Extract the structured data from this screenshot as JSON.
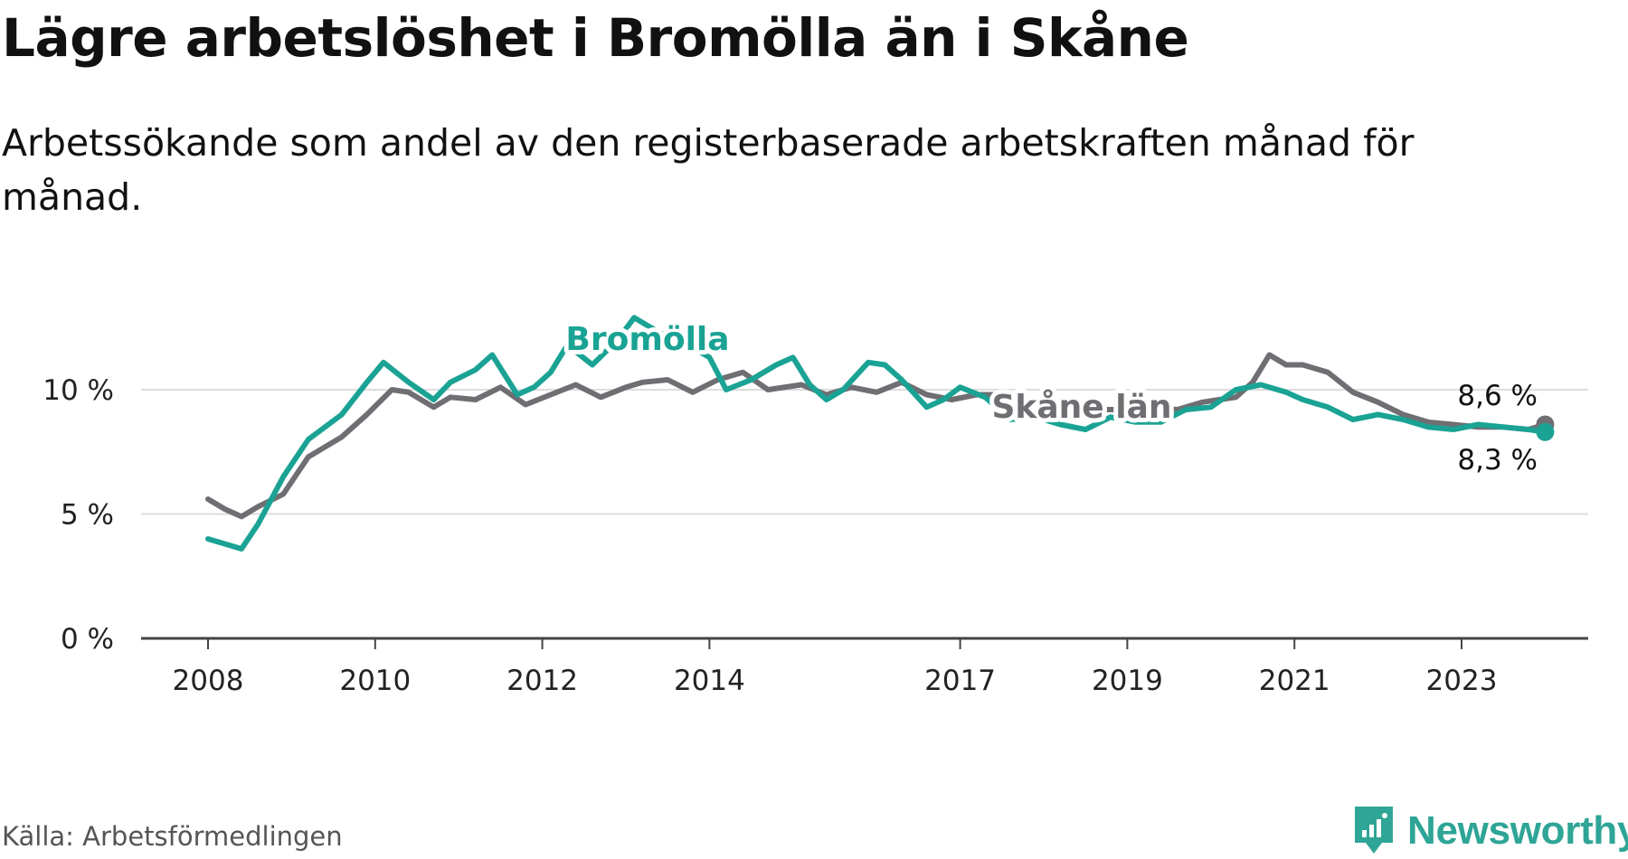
{
  "title": "Lägre arbetslöshet i Bromölla än i Skåne",
  "subtitle": "Arbetssökande som andel av den registerbaserade arbetskraften månad för månad.",
  "source": "Källa: Arbetsförmedlingen",
  "brand": "Newsworthy",
  "colors": {
    "bromolla": "#1aa394",
    "skane": "#6f6e72",
    "grid": "#dddddd",
    "axis": "#444444"
  },
  "chart_data": {
    "type": "line",
    "title": "Lägre arbetslöshet i Bromölla än i Skåne",
    "xlabel": "",
    "ylabel": "",
    "xlim": [
      2007.6,
      2024.6
    ],
    "ylim": [
      0,
      13
    ],
    "y_ticks": [
      0,
      5,
      10
    ],
    "y_tick_labels": [
      "0 %",
      "5 %",
      "10 %"
    ],
    "x_ticks": [
      2008,
      2010,
      2012,
      2014,
      2017,
      2019,
      2021,
      2023
    ],
    "x_tick_labels": [
      "2008",
      "2010",
      "2012",
      "2014",
      "2017",
      "2019",
      "2021",
      "2023"
    ],
    "series": [
      {
        "name": "Skåne län",
        "label": "Skåne län",
        "end_label": "8,6 %",
        "x": [
          2008.0,
          2008.2,
          2008.4,
          2008.6,
          2008.9,
          2009.2,
          2009.6,
          2009.9,
          2010.2,
          2010.4,
          2010.7,
          2010.9,
          2011.2,
          2011.5,
          2011.8,
          2012.1,
          2012.4,
          2012.7,
          2013.0,
          2013.2,
          2013.5,
          2013.8,
          2014.1,
          2014.4,
          2014.7,
          2015.1,
          2015.4,
          2015.7,
          2016.0,
          2016.3,
          2016.6,
          2016.9,
          2017.2,
          2017.5,
          2017.8,
          2018.1,
          2018.4,
          2018.7,
          2019.0,
          2019.3,
          2019.6,
          2019.9,
          2020.1,
          2020.3,
          2020.5,
          2020.7,
          2020.9,
          2021.1,
          2021.4,
          2021.7,
          2022.0,
          2022.3,
          2022.6,
          2022.9,
          2023.2,
          2023.5,
          2023.8,
          2024.0
        ],
        "values": [
          5.6,
          5.2,
          4.9,
          5.3,
          5.8,
          7.3,
          8.1,
          9.0,
          10.0,
          9.9,
          9.3,
          9.7,
          9.6,
          10.1,
          9.4,
          9.8,
          10.2,
          9.7,
          10.1,
          10.3,
          10.4,
          9.9,
          10.4,
          10.7,
          10.0,
          10.2,
          9.8,
          10.1,
          9.9,
          10.3,
          9.8,
          9.6,
          9.8,
          9.8,
          9.6,
          9.4,
          9.2,
          9.2,
          9.2,
          9.3,
          9.2,
          9.5,
          9.6,
          9.7,
          10.3,
          11.4,
          11.0,
          11.0,
          10.7,
          9.9,
          9.5,
          9.0,
          8.7,
          8.6,
          8.5,
          8.5,
          8.4,
          8.6
        ]
      },
      {
        "name": "Bromölla",
        "label": "Bromölla",
        "end_label": "8,3 %",
        "x": [
          2008.0,
          2008.2,
          2008.4,
          2008.6,
          2008.9,
          2009.2,
          2009.6,
          2009.9,
          2010.1,
          2010.4,
          2010.7,
          2010.9,
          2011.2,
          2011.4,
          2011.7,
          2011.9,
          2012.1,
          2012.3,
          2012.6,
          2012.9,
          2013.1,
          2013.4,
          2013.7,
          2014.0,
          2014.2,
          2014.5,
          2014.8,
          2015.0,
          2015.2,
          2015.4,
          2015.6,
          2015.9,
          2016.1,
          2016.3,
          2016.6,
          2016.8,
          2017.0,
          2017.3,
          2017.6,
          2017.9,
          2018.2,
          2018.5,
          2018.8,
          2019.1,
          2019.4,
          2019.7,
          2020.0,
          2020.3,
          2020.6,
          2020.9,
          2021.1,
          2021.4,
          2021.7,
          2022.0,
          2022.3,
          2022.6,
          2022.9,
          2023.2,
          2023.5,
          2023.8,
          2024.0
        ],
        "values": [
          4.0,
          3.8,
          3.6,
          4.6,
          6.5,
          8.0,
          9.0,
          10.3,
          11.1,
          10.3,
          9.6,
          10.3,
          10.8,
          11.4,
          9.8,
          10.1,
          10.7,
          11.8,
          11.0,
          12.0,
          12.9,
          12.3,
          11.9,
          11.3,
          10.0,
          10.4,
          11.0,
          11.3,
          10.2,
          9.6,
          10.0,
          11.1,
          11.0,
          10.4,
          9.3,
          9.6,
          10.1,
          9.7,
          8.8,
          8.9,
          8.6,
          8.4,
          8.9,
          8.7,
          8.7,
          9.2,
          9.3,
          10.0,
          10.2,
          9.9,
          9.6,
          9.3,
          8.8,
          9.0,
          8.8,
          8.5,
          8.4,
          8.6,
          8.5,
          8.4,
          8.3
        ]
      }
    ]
  }
}
